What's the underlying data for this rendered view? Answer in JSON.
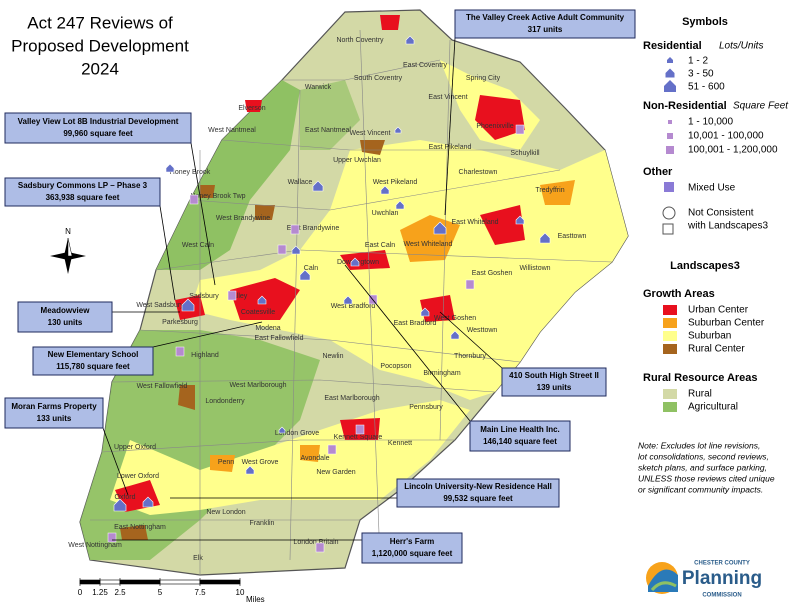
{
  "title": [
    "Act 247 Reviews of",
    "Proposed Development",
    "2024"
  ],
  "callouts": [
    {
      "name": "The Valley Creek Active Adult Community",
      "detail": "317 units"
    },
    {
      "name": "Valley View Lot 8B Industrial Development",
      "detail": "99,960 square feet"
    },
    {
      "name": "Sadsbury Commons LP – Phase 3",
      "detail": "363,938 square feet"
    },
    {
      "name": "Meadowview",
      "detail": "130 units"
    },
    {
      "name": "New Elementary School",
      "detail": "115,780 square feet"
    },
    {
      "name": "Moran Farms Property",
      "detail": "133 units"
    },
    {
      "name": "Main Line Health Inc.",
      "detail": "146,140 square feet"
    },
    {
      "name": "410 South High Street II",
      "detail": "139 units"
    },
    {
      "name": "Lincoln University-New Residence Hall",
      "detail": "99,532 square feet"
    },
    {
      "name": "Herr's Farm",
      "detail": "1,120,000 square feet"
    }
  ],
  "townships": [
    "North Coventry",
    "East Coventry",
    "South Coventry",
    "Warwick",
    "Elverson",
    "Spring City",
    "Phoenixville",
    "East Vincent",
    "West Vincent",
    "Schuylkill",
    "East Pikeland",
    "Charlestown",
    "West Pikeland",
    "East Nantmeal",
    "West Nantmeal",
    "Honey Brook Twp",
    "Honey Brook",
    "Wallace",
    "Upper Uwchlan",
    "Uwchlan",
    "Tredyffrin",
    "East Whiteland",
    "Easttown",
    "West Brandywine",
    "East Brandywine",
    "West Caln",
    "Caln",
    "East Caln",
    "Downingtown",
    "Willistown",
    "West Whiteland",
    "East Goshen",
    "West Sadsbury",
    "Sadsbury",
    "Valley",
    "Parkesburg",
    "Coatesville",
    "Modena",
    "East Fallowfield",
    "West Bradford",
    "East Bradford",
    "West Goshen",
    "Westtown",
    "Thornbury",
    "Highland",
    "Newlin",
    "Pocopson",
    "Birmingham",
    "West Fallowfield",
    "West Marlborough",
    "East Marlborough",
    "Pennsbury",
    "Londonderry",
    "Upper Oxford",
    "London Grove",
    "Kennett Square",
    "Kennett",
    "Penn",
    "West Grove",
    "Avondale",
    "New Garden",
    "Lower Oxford",
    "Oxford",
    "East Nottingham",
    "West Nottingham",
    "New London",
    "Franklin",
    "London Britain",
    "Elk"
  ],
  "north": "N",
  "scale": {
    "ticks": [
      0,
      1.25,
      2.5,
      5,
      7.5,
      10
    ],
    "unit": "Miles"
  },
  "legend": {
    "symbols_title": "Symbols",
    "residential": {
      "title": "Residential",
      "unit": "Lots/Units",
      "items": [
        "1 - 2",
        "3 - 50",
        "51 - 600"
      ]
    },
    "non_residential": {
      "title": "Non-Residential",
      "unit": "Square Feet",
      "items": [
        "1 - 10,000",
        "10,001 - 100,000",
        "100,001 - 1,200,000"
      ]
    },
    "other": {
      "title": "Other",
      "items": [
        "Mixed Use",
        "Not Consistent",
        "with Landscapes3"
      ]
    },
    "landscapes_title": "Landscapes3",
    "growth": {
      "title": "Growth Areas",
      "items": [
        {
          "label": "Urban Center",
          "color": "#e8101e"
        },
        {
          "label": "Suburban Center",
          "color": "#f7a21b"
        },
        {
          "label": "Suburban",
          "color": "#ffff8c"
        },
        {
          "label": "Rural Center",
          "color": "#a5641e"
        }
      ]
    },
    "rural": {
      "title": "Rural Resource Areas",
      "items": [
        {
          "label": "Rural",
          "color": "#d3d9a6"
        },
        {
          "label": "Agricultural",
          "color": "#8fc163"
        }
      ]
    },
    "note": [
      "Note: Excludes lot line revisions,",
      "lot consolidations, second reviews,",
      "sketch plans, and surface parking,",
      "UNLESS those reviews cited unique",
      "or significant community impacts."
    ]
  },
  "logo": [
    "CHESTER COUNTY",
    "Planning",
    "COMMISSION"
  ]
}
